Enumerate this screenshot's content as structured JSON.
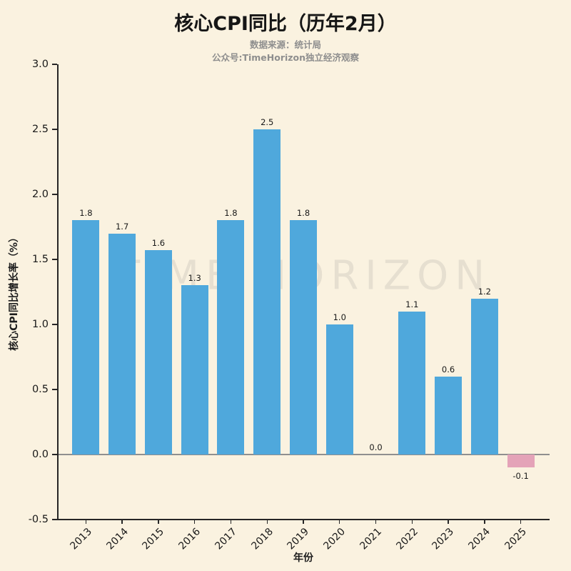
{
  "chart_data": {
    "type": "bar",
    "title": "核心CPI同比（历年2月）",
    "subtitle_lines": [
      "数据来源：统计局",
      "公众号:TimeHorizon独立经济观察"
    ],
    "watermark": "TIME HORIZON",
    "xlabel": "年份",
    "ylabel": "核心CPI同比增长率（%）",
    "categories": [
      "2013",
      "2014",
      "2015",
      "2016",
      "2017",
      "2018",
      "2019",
      "2020",
      "2021",
      "2022",
      "2023",
      "2024",
      "2025"
    ],
    "values": [
      1.8,
      1.7,
      1.57,
      1.3,
      1.8,
      2.5,
      1.8,
      1.0,
      0.0,
      1.1,
      0.6,
      1.2,
      -0.1
    ],
    "bar_labels": [
      "1.8",
      "1.7",
      "1.6",
      "1.3",
      "1.8",
      "2.5",
      "1.8",
      "1.0",
      "0.0",
      "1.1",
      "0.6",
      "1.2",
      "-0.1"
    ],
    "ylim": [
      -0.5,
      3.0
    ],
    "yticks": [
      "3.0",
      "2.5",
      "2.0",
      "1.5",
      "1.0",
      "0.5",
      "0.0",
      "-0.5"
    ],
    "grid": false,
    "legend": null,
    "colors": {
      "background": "#faf2e0",
      "bar_positive": "#4fa8dc",
      "bar_negative": "#e4a3b8",
      "zero_line": "#8f8f8f"
    }
  }
}
